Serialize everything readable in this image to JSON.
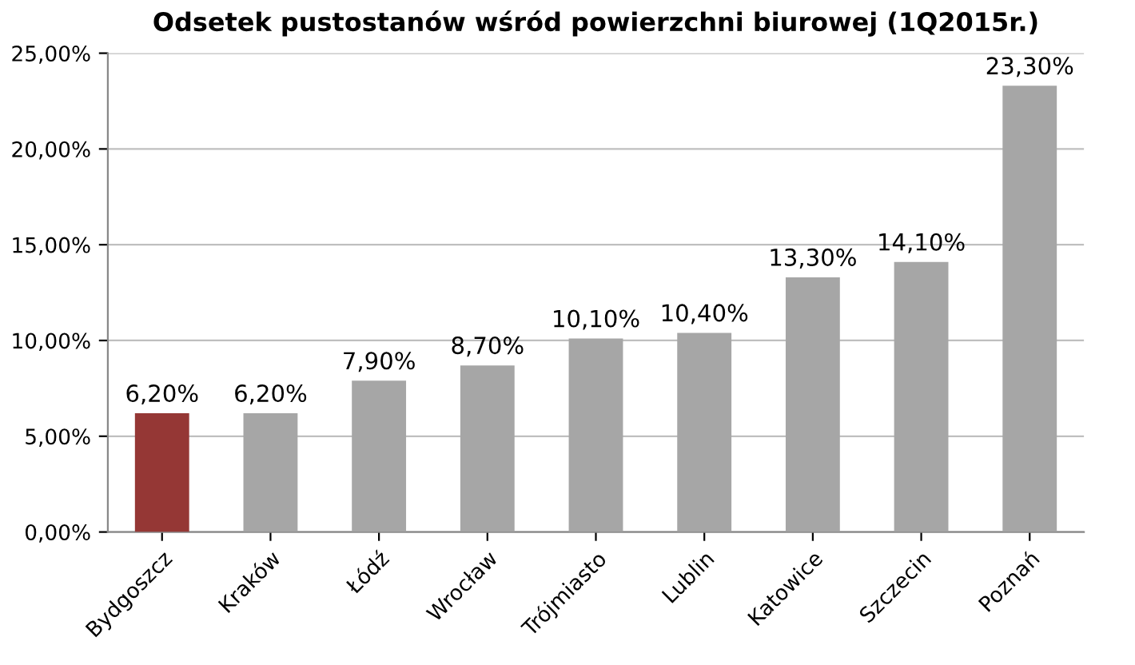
{
  "chart_data": {
    "type": "bar",
    "title": "Odsetek pustostanów wśród powierzchni biurowej (1Q2015r.)",
    "categories": [
      "Bydgoszcz",
      "Kraków",
      "Łódź",
      "Wrocław",
      "Trójmiasto",
      "Lublin",
      "Katowice",
      "Szczecin",
      "Poznań"
    ],
    "values": [
      6.2,
      6.2,
      7.9,
      8.7,
      10.1,
      10.4,
      13.3,
      14.1,
      23.3
    ],
    "value_labels": [
      "6,20%",
      "6,20%",
      "7,90%",
      "8,70%",
      "10,10%",
      "10,40%",
      "13,30%",
      "14,10%",
      "23,30%"
    ],
    "colors": [
      "#953735",
      "#a6a6a6",
      "#a6a6a6",
      "#a6a6a6",
      "#a6a6a6",
      "#a6a6a6",
      "#a6a6a6",
      "#a6a6a6",
      "#a6a6a6"
    ],
    "ylim": [
      0,
      25
    ],
    "yticks": [
      {
        "value": 0,
        "label": "0,00%"
      },
      {
        "value": 5,
        "label": "5,00%"
      },
      {
        "value": 10,
        "label": "10,00%"
      },
      {
        "value": 15,
        "label": "15,00%"
      },
      {
        "value": 20,
        "label": "20,00%"
      },
      {
        "value": 25,
        "label": "25,00%"
      }
    ],
    "grid": "y"
  }
}
